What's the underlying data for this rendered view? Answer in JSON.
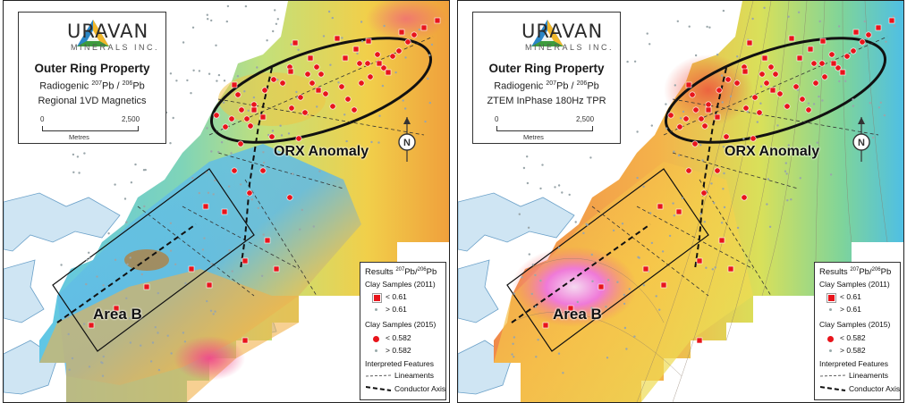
{
  "company": {
    "name": "URAVAN",
    "subtitle": "MINERALS INC."
  },
  "colors": {
    "sample_red": "#e8141b",
    "sample_grey": "#9aa6aa",
    "water": "#cfe5f3",
    "water_edge": "#6aa0c8"
  },
  "panels": [
    {
      "title": "Outer Ring Property",
      "line2_pre": "Radiogenic ",
      "line2_sup1": "207",
      "line2_mid": "Pb / ",
      "line2_sup2": "206",
      "line2_post": "Pb",
      "layer": "Regional 1VD Magnetics",
      "colormap": "magnetics"
    },
    {
      "title": "Outer Ring Property",
      "line2_pre": "Radiogenic ",
      "line2_sup1": "207",
      "line2_mid": "Pb / ",
      "line2_sup2": "206",
      "line2_post": "Pb",
      "layer": "ZTEM InPhase 180Hz TPR",
      "colormap": "ztem"
    }
  ],
  "scale": {
    "min_label": "0",
    "max_label": "2,500",
    "unit": "Metres"
  },
  "labels": {
    "orx": "ORX Anomaly",
    "area_b": "Area B"
  },
  "legend": {
    "title_pre": "Results ",
    "title_sup1": "207",
    "title_mid": "Pb/",
    "title_sup2": "206",
    "title_post": "Pb",
    "clay2011": "Clay Samples (2011)",
    "lt061": "< 0.61",
    "gt061": "> 0.61",
    "clay2015": "Clay Samples (2015)",
    "lt0582": "< 0.582",
    "gt0582": "> 0.582",
    "features": "Interpreted Features",
    "lineaments": "Lineaments",
    "conductor": "Conductor Axis"
  },
  "icons": {
    "north": "north-arrow-icon",
    "logo": "uravan-logo-icon"
  }
}
